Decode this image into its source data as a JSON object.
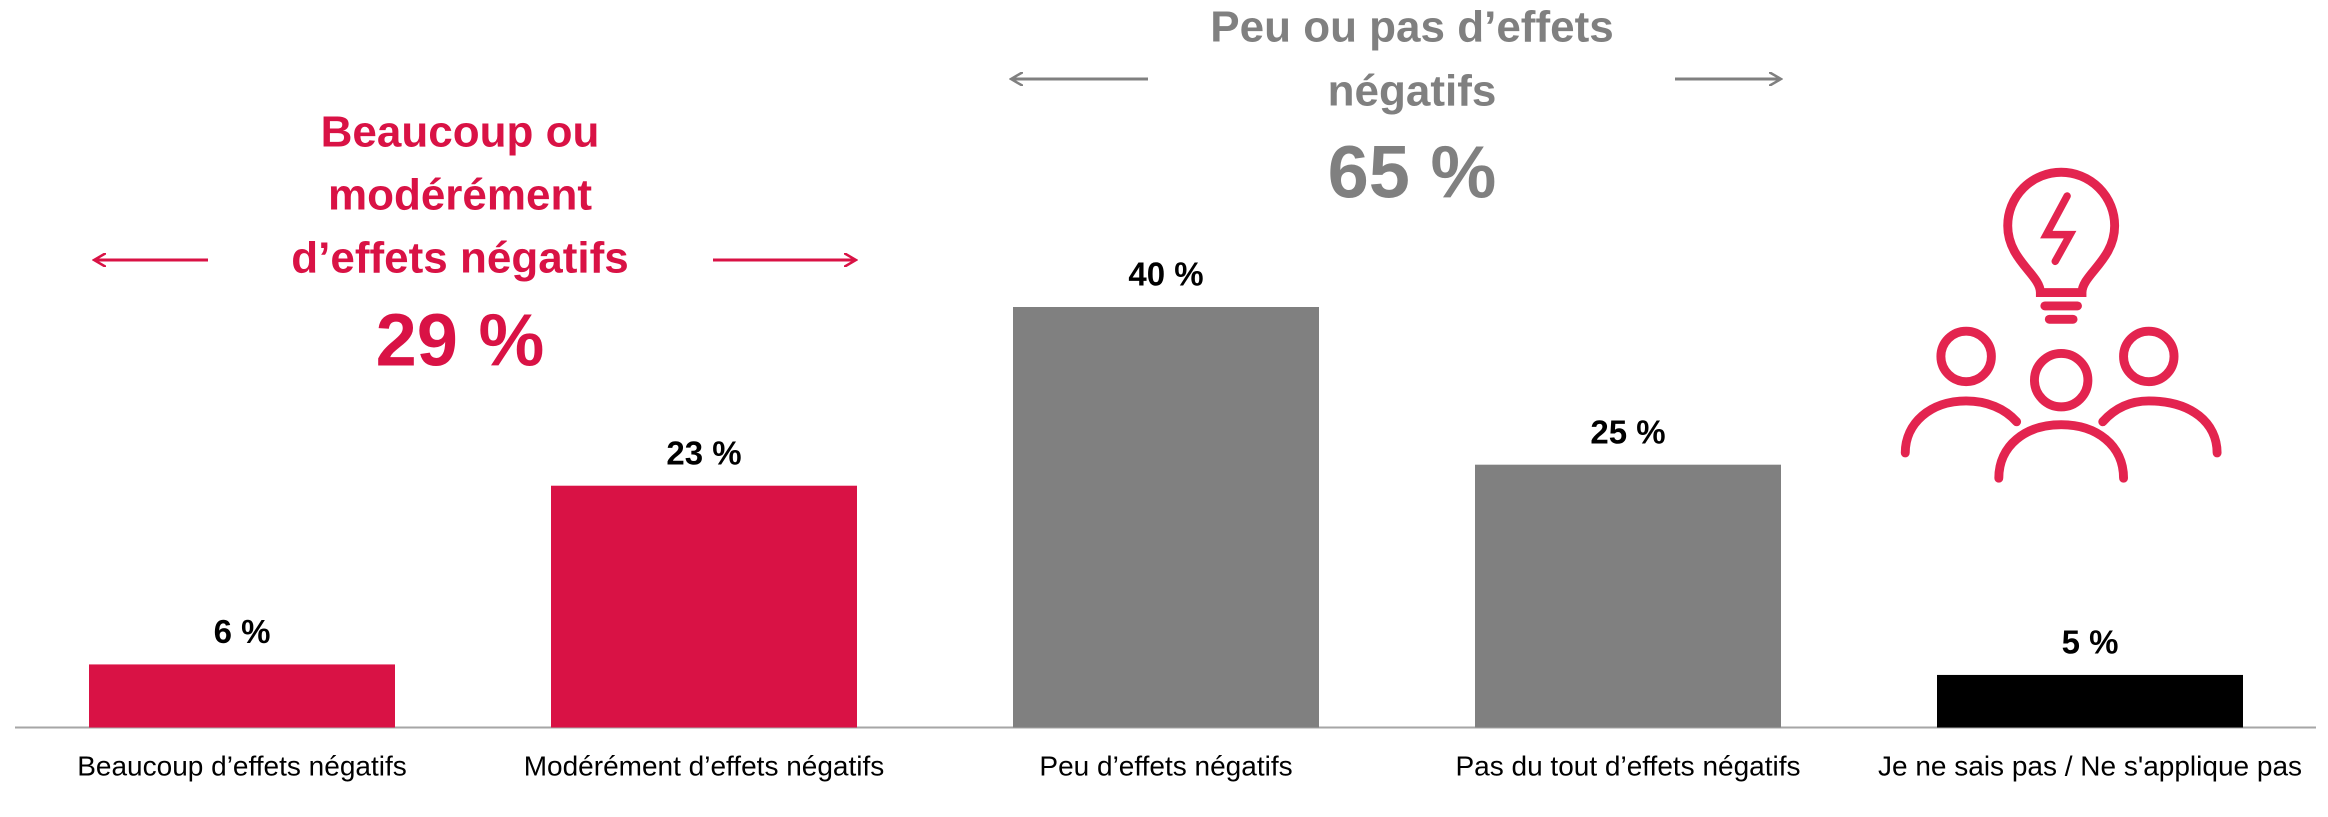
{
  "chart_data": {
    "type": "bar",
    "categories": [
      "Beaucoup d’effets négatifs",
      "Modérément d’effets négatifs",
      "Peu d’effets négatifs",
      "Pas du tout d’effets négatifs",
      "Je ne sais pas / Ne s'applique pas"
    ],
    "values": [
      6,
      23,
      40,
      25,
      5
    ],
    "value_labels": [
      "6 %",
      "23 %",
      "40 %",
      "25 %",
      "5 %"
    ],
    "colors": [
      "#d91245",
      "#d91245",
      "#808080",
      "#808080",
      "#000000"
    ],
    "ylim": [
      0,
      40
    ],
    "annotations": [
      {
        "lines": [
          "Beaucoup ou",
          "modérément",
          "d’effets négatifs"
        ],
        "total": "29 %",
        "color": "#d91245"
      },
      {
        "lines": [
          "Peu ou pas d’effets",
          "négatifs"
        ],
        "total": "65 %",
        "color": "#808080"
      }
    ]
  }
}
